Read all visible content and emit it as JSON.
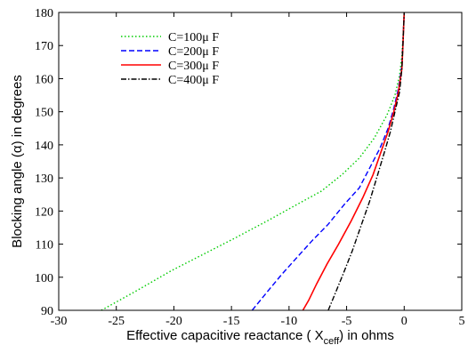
{
  "chart_data": {
    "type": "line",
    "title": "",
    "xlabel": {
      "prefix": "Effective capacitive reactance ( X",
      "sub": "ceff",
      "suffix": ") in ohms"
    },
    "ylabel": "Blocking angle (α) in degrees",
    "xlim": [
      -30,
      5
    ],
    "ylim": [
      90,
      180
    ],
    "xticks": [
      "-30",
      "-25",
      "-20",
      "-15",
      "-10",
      "-5",
      "0",
      "5"
    ],
    "yticks": [
      "90",
      "100",
      "110",
      "120",
      "130",
      "140",
      "150",
      "160",
      "170",
      "180"
    ],
    "grid": false,
    "legend_position": "top-left",
    "series": [
      {
        "name": "C=100μ F",
        "color": "#00cc00",
        "dash": "dotted",
        "points": [
          [
            -26.3,
            90
          ],
          [
            -23.2,
            96
          ],
          [
            -20.2,
            102
          ],
          [
            -17.4,
            107
          ],
          [
            -14.6,
            112
          ],
          [
            -11.9,
            117
          ],
          [
            -9.3,
            122
          ],
          [
            -7.2,
            126
          ],
          [
            -5.4,
            131
          ],
          [
            -3.9,
            136
          ],
          [
            -2.6,
            142
          ],
          [
            -1.5,
            149
          ],
          [
            -0.8,
            155
          ],
          [
            -0.4,
            161
          ],
          [
            -0.2,
            167
          ],
          [
            -0.1,
            173
          ],
          [
            0,
            180
          ]
        ]
      },
      {
        "name": "C=200μ F",
        "color": "#0000ff",
        "dash": "dashed",
        "points": [
          [
            -13.2,
            90
          ],
          [
            -11.8,
            96
          ],
          [
            -10.6,
            101
          ],
          [
            -9.3,
            106
          ],
          [
            -8.0,
            111
          ],
          [
            -6.6,
            116
          ],
          [
            -5.2,
            122
          ],
          [
            -3.9,
            127
          ],
          [
            -3.0,
            133
          ],
          [
            -2.1,
            139
          ],
          [
            -1.4,
            145
          ],
          [
            -0.9,
            151
          ],
          [
            -0.5,
            157
          ],
          [
            -0.2,
            164
          ],
          [
            -0.1,
            172
          ],
          [
            0,
            180
          ]
        ]
      },
      {
        "name": "C=300μ F",
        "color": "#ff0000",
        "dash": "solid",
        "points": [
          [
            -8.8,
            90
          ],
          [
            -8.3,
            93
          ],
          [
            -7.6,
            98
          ],
          [
            -6.7,
            104
          ],
          [
            -5.7,
            110
          ],
          [
            -4.6,
            117
          ],
          [
            -3.6,
            124
          ],
          [
            -2.7,
            131
          ],
          [
            -2.0,
            138
          ],
          [
            -1.4,
            144
          ],
          [
            -0.9,
            150
          ],
          [
            -0.5,
            156
          ],
          [
            -0.2,
            163
          ],
          [
            -0.1,
            171
          ],
          [
            0,
            180
          ]
        ]
      },
      {
        "name": "C=400μ F",
        "color": "#000000",
        "dash": "dashdot",
        "points": [
          [
            -6.6,
            90
          ],
          [
            -6.0,
            95
          ],
          [
            -5.3,
            101
          ],
          [
            -4.5,
            108
          ],
          [
            -3.8,
            115
          ],
          [
            -3.0,
            123
          ],
          [
            -2.3,
            131
          ],
          [
            -1.7,
            138
          ],
          [
            -1.2,
            144
          ],
          [
            -0.8,
            150
          ],
          [
            -0.4,
            156
          ],
          [
            -0.2,
            163
          ],
          [
            -0.1,
            171
          ],
          [
            0,
            180
          ]
        ]
      }
    ]
  }
}
